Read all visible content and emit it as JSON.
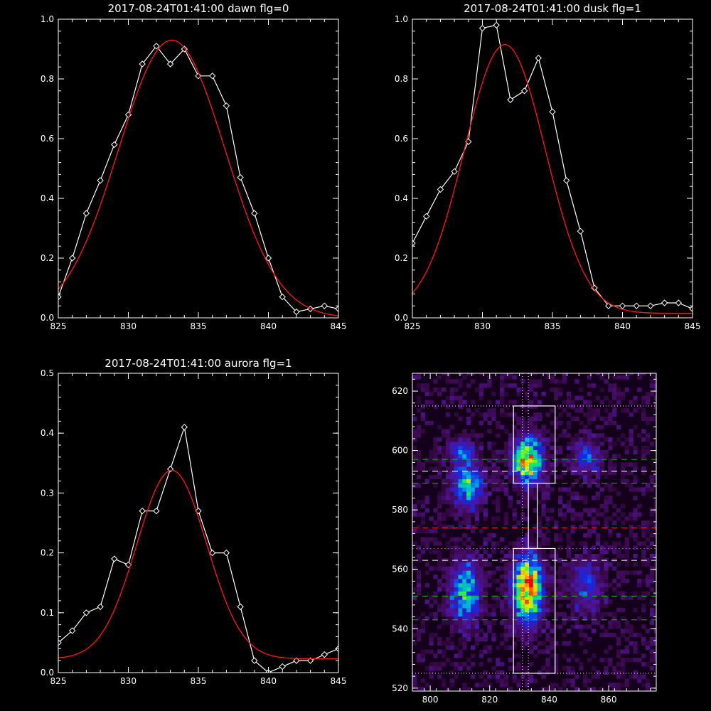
{
  "chart_data": [
    {
      "id": "dawn",
      "type": "line",
      "title": "2017-08-24T01:41:00 dawn flg=0",
      "xlim": [
        825,
        845
      ],
      "ylim": [
        0,
        1
      ],
      "xticks": [
        "825",
        "830",
        "835",
        "840",
        "845"
      ],
      "yticks": [
        "0.0",
        "0.2",
        "0.4",
        "0.6",
        "0.8",
        "1.0"
      ],
      "series": [
        {
          "style": "white-diamond",
          "x": [
            825,
            826,
            827,
            828,
            829,
            830,
            831,
            832,
            833,
            834,
            835,
            836,
            837,
            838,
            839,
            840,
            841,
            842,
            843,
            844,
            845
          ],
          "y": [
            0.07,
            0.2,
            0.35,
            0.46,
            0.58,
            0.68,
            0.85,
            0.91,
            0.85,
            0.9,
            0.81,
            0.81,
            0.71,
            0.47,
            0.35,
            0.2,
            0.07,
            0.02,
            0.03,
            0.04,
            0.03
          ]
        },
        {
          "style": "red-fit",
          "gauss": {
            "amp": 0.93,
            "center": 833.1,
            "sigma": 3.8,
            "offset": 0
          }
        }
      ]
    },
    {
      "id": "dusk",
      "type": "line",
      "title": "2017-08-24T01:41:00 dusk flg=1",
      "xlim": [
        825,
        845
      ],
      "ylim": [
        0,
        1
      ],
      "xticks": [
        "825",
        "830",
        "835",
        "840",
        "845"
      ],
      "yticks": [
        "0.0",
        "0.2",
        "0.4",
        "0.6",
        "0.8",
        "1.0"
      ],
      "series": [
        {
          "style": "white-diamond",
          "x": [
            825,
            826,
            827,
            828,
            829,
            830,
            831,
            832,
            833,
            834,
            835,
            836,
            837,
            838,
            839,
            840,
            841,
            842,
            843,
            844,
            845
          ],
          "y": [
            0.25,
            0.34,
            0.43,
            0.49,
            0.59,
            0.97,
            0.98,
            0.73,
            0.76,
            0.87,
            0.69,
            0.46,
            0.29,
            0.1,
            0.04,
            0.04,
            0.04,
            0.04,
            0.05,
            0.05,
            0.03
          ]
        },
        {
          "style": "red-fit",
          "gauss": {
            "amp": 0.9,
            "center": 831.6,
            "sigma": 2.9,
            "offset": 0.015
          }
        }
      ]
    },
    {
      "id": "aurora",
      "type": "line",
      "title": "2017-08-24T01:41:00 aurora flg=1",
      "xlim": [
        825,
        845
      ],
      "ylim": [
        0,
        0.5
      ],
      "xticks": [
        "825",
        "830",
        "835",
        "840",
        "845"
      ],
      "yticks": [
        "0.0",
        "0.1",
        "0.2",
        "0.3",
        "0.4",
        "0.5"
      ],
      "series": [
        {
          "style": "white-diamond",
          "x": [
            825,
            826,
            827,
            828,
            829,
            830,
            831,
            832,
            833,
            834,
            835,
            836,
            837,
            838,
            839,
            840,
            841,
            842,
            843,
            844,
            845
          ],
          "y": [
            0.05,
            0.07,
            0.1,
            0.11,
            0.19,
            0.18,
            0.27,
            0.27,
            0.34,
            0.41,
            0.27,
            0.2,
            0.2,
            0.11,
            0.02,
            0.0,
            0.01,
            0.02,
            0.02,
            0.03,
            0.04
          ]
        },
        {
          "style": "red-fit",
          "gauss": {
            "amp": 0.315,
            "center": 833.1,
            "sigma": 2.5,
            "offset": 0.023
          }
        }
      ]
    },
    {
      "id": "image",
      "type": "heatmap",
      "title": "",
      "xlim": [
        794,
        876
      ],
      "ylim": [
        519,
        626
      ],
      "xticks": [
        "800",
        "820",
        "840",
        "860"
      ],
      "yticks": [
        "520",
        "540",
        "560",
        "580",
        "600",
        "620"
      ],
      "blobs": [
        {
          "x": 812,
          "y": 588,
          "sx": 3.5,
          "sy": 5,
          "amp": 0.55
        },
        {
          "x": 810,
          "y": 599,
          "sx": 3,
          "sy": 3,
          "amp": 0.3
        },
        {
          "x": 832,
          "y": 596,
          "sx": 3.3,
          "sy": 5,
          "amp": 0.9
        },
        {
          "x": 852,
          "y": 597,
          "sx": 3.5,
          "sy": 4,
          "amp": 0.3
        },
        {
          "x": 811,
          "y": 552,
          "sx": 3.5,
          "sy": 7,
          "amp": 0.55
        },
        {
          "x": 832,
          "y": 553,
          "sx": 3.3,
          "sy": 7.5,
          "amp": 0.95
        },
        {
          "x": 852,
          "y": 554,
          "sx": 3.5,
          "sy": 6,
          "amp": 0.3
        }
      ],
      "boxes": [
        {
          "x0": 828,
          "x1": 842,
          "y0": 589,
          "y1": 615
        },
        {
          "x0": 828,
          "x1": 842,
          "y0": 525,
          "y1": 567
        },
        {
          "x0": 833,
          "x1": 836,
          "y0": 567,
          "y1": 589
        }
      ],
      "hlines": [
        {
          "y": 597,
          "color": "#00c000",
          "dash": "8,6"
        },
        {
          "y": 589,
          "color": "#00c000",
          "dash": "8,6"
        },
        {
          "y": 593,
          "color": "#ffffff",
          "dash": "8,6"
        },
        {
          "y": 574,
          "color": "#ff2020",
          "dash": "8,6"
        },
        {
          "y": 567,
          "color": "#ff2020",
          "dash": "2,3"
        },
        {
          "y": 563,
          "color": "#ffffff",
          "dash": "8,6"
        },
        {
          "y": 551,
          "color": "#00c000",
          "dash": "8,6"
        },
        {
          "y": 543,
          "color": "#00c000",
          "dash": "8,6"
        },
        {
          "y": 615,
          "color": "#ffffff",
          "dash": "1,3"
        },
        {
          "y": 525,
          "color": "#ffffff",
          "dash": "1,3"
        }
      ],
      "vlines": [
        {
          "x": 831,
          "color": "#ffffff",
          "dash": "1,3"
        },
        {
          "x": 833,
          "color": "#ffffff",
          "dash": "1,3"
        }
      ]
    }
  ]
}
